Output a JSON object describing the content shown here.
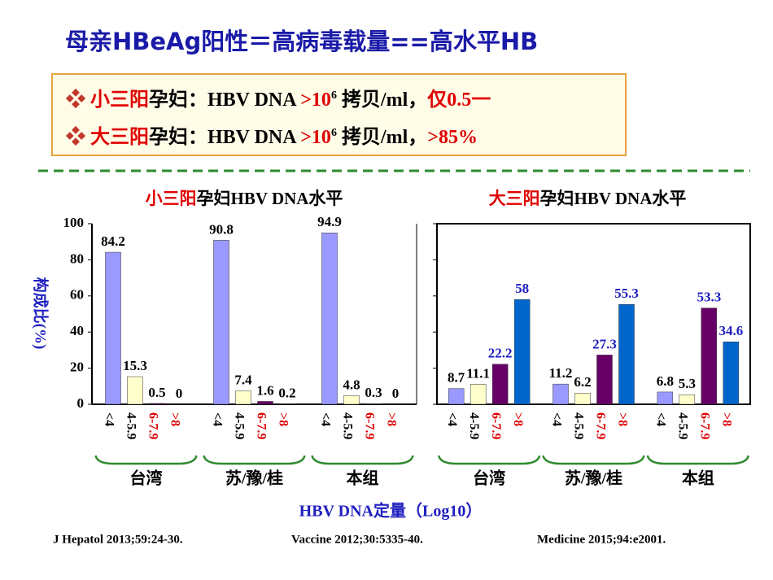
{
  "title": "母亲HBeAg阳性＝高病毒载量==高水平HB",
  "box": {
    "lines": [
      [
        {
          "text": "❖ ",
          "color": "#c0392b"
        },
        {
          "text": "小三阳",
          "color": "#e00000"
        },
        {
          "text": "孕妇：HBV DNA ",
          "color": "#000000"
        },
        {
          "text": ">10",
          "color": "#e00000"
        },
        {
          "text": "6",
          "color": "#000000",
          "sup": true
        },
        {
          "text": " 拷贝/ml，",
          "color": "#000000"
        },
        {
          "text": "仅0.5一",
          "color": "#e00000"
        }
      ],
      [
        {
          "text": "❖ ",
          "color": "#c0392b"
        },
        {
          "text": "大三阳",
          "color": "#e00000"
        },
        {
          "text": "孕妇：HBV DNA ",
          "color": "#000000"
        },
        {
          "text": ">10",
          "color": "#e00000"
        },
        {
          "text": "6",
          "color": "#000000",
          "sup": true
        },
        {
          "text": " 拷贝/ml，",
          "color": "#000000"
        },
        {
          "text": ">85%",
          "color": "#e00000"
        }
      ]
    ]
  },
  "x_label": "HBV DNA定量（Log10）",
  "references": [
    "J Hepatol 2013;59:24-30.",
    "Vaccine 2012;30:5335-40.",
    "Medicine  2015;94:e2001."
  ],
  "chart_data": [
    {
      "type": "bar",
      "title": [
        "小三阳",
        "孕妇HBV DNA水平"
      ],
      "title_colors": [
        "#e00000",
        "#000000"
      ],
      "y_label": "构成比(%)",
      "ylim": [
        0,
        100
      ],
      "yticks": [
        0,
        20,
        40,
        60,
        80,
        100
      ],
      "ytick_labels": true,
      "frame": "open",
      "categories": [
        "台湾",
        "苏/豫/桂",
        "本组"
      ],
      "series": [
        {
          "name": "<4",
          "color": "#9999ff",
          "name_color": "#000000",
          "label_color": "#000000",
          "values": [
            84.2,
            90.8,
            94.9
          ]
        },
        {
          "name": "4-5.9",
          "color": "#ffffcc",
          "name_color": "#000000",
          "label_color": "#000000",
          "values": [
            15.3,
            7.4,
            4.8
          ]
        },
        {
          "name": "6-7.9",
          "color": "#660066",
          "name_color": "#e00000",
          "label_color": "#000000",
          "values": [
            0.5,
            1.6,
            0.3
          ]
        },
        {
          "name": ">8",
          "color": "#0066cc",
          "name_color": "#e00000",
          "label_color": "#000000",
          "values": [
            0,
            0.2,
            0
          ]
        }
      ]
    },
    {
      "type": "bar",
      "title": [
        "大三阳",
        "孕妇HBV DNA水平"
      ],
      "title_colors": [
        "#e00000",
        "#000000"
      ],
      "ylim": [
        0,
        100
      ],
      "yticks": [
        0,
        20,
        40,
        60,
        80,
        100
      ],
      "ytick_labels": false,
      "frame": "box",
      "categories": [
        "台湾",
        "苏/豫/桂",
        "本组"
      ],
      "series": [
        {
          "name": "<4",
          "color": "#9999ff",
          "name_color": "#000000",
          "label_color": "#000000",
          "values": [
            8.7,
            11.2,
            6.8
          ]
        },
        {
          "name": "4-5.9",
          "color": "#ffffcc",
          "name_color": "#000000",
          "label_color": "#000000",
          "values": [
            11.1,
            6.2,
            5.3
          ]
        },
        {
          "name": "6-7.9",
          "color": "#660066",
          "name_color": "#e00000",
          "label_color": "#2020c0",
          "values": [
            22.2,
            27.3,
            53.3
          ]
        },
        {
          "name": ">8",
          "color": "#0066cc",
          "name_color": "#e00000",
          "label_color": "#2020c0",
          "values": [
            58,
            55.3,
            34.6
          ]
        }
      ]
    }
  ]
}
